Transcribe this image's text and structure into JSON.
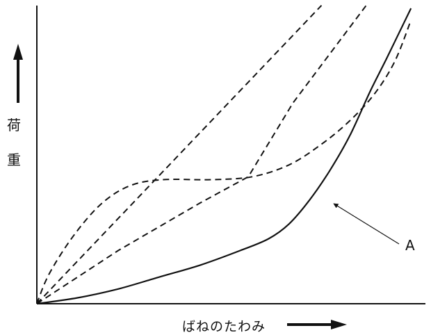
{
  "chart_data": {
    "type": "line",
    "title": "",
    "ylabel": "荷重",
    "ylabel_chars": [
      "荷",
      "重"
    ],
    "xlabel": "ばねのたわみ",
    "annotations": [
      {
        "label": "A",
        "target_series": "A"
      }
    ],
    "axes": {
      "ticks": "none",
      "grid": false,
      "x_arrow": "right",
      "y_arrow": "up"
    },
    "series": [
      {
        "name": "A",
        "style": "solid",
        "points": [
          [
            0,
            0
          ],
          [
            10,
            2
          ],
          [
            20,
            5
          ],
          [
            30,
            9
          ],
          [
            40,
            13
          ],
          [
            50,
            18
          ],
          [
            57,
            22
          ],
          [
            62,
            27
          ],
          [
            67,
            35
          ],
          [
            72,
            45
          ],
          [
            77,
            57
          ],
          [
            82,
            72
          ],
          [
            86,
            83
          ],
          [
            92,
            100
          ]
        ]
      },
      {
        "style": "dashed",
        "points": [
          [
            0,
            0
          ],
          [
            3,
            10
          ],
          [
            9,
            23
          ],
          [
            16,
            34
          ],
          [
            23,
            40
          ],
          [
            31,
            42
          ],
          [
            43,
            42
          ],
          [
            53,
            43
          ],
          [
            62,
            47
          ],
          [
            70,
            54
          ],
          [
            77,
            62
          ],
          [
            83,
            71
          ],
          [
            88,
            82
          ],
          [
            92,
            96
          ]
        ]
      },
      {
        "style": "dashed",
        "points": [
          [
            0,
            0
          ],
          [
            20,
            18
          ],
          [
            40,
            34
          ],
          [
            52,
            43
          ],
          [
            63,
            68
          ],
          [
            81,
            101
          ]
        ]
      },
      {
        "style": "dashed",
        "points": [
          [
            0,
            0
          ],
          [
            70,
            101
          ]
        ]
      }
    ],
    "colors": {
      "line": "#111111",
      "axis": "#111111"
    }
  }
}
